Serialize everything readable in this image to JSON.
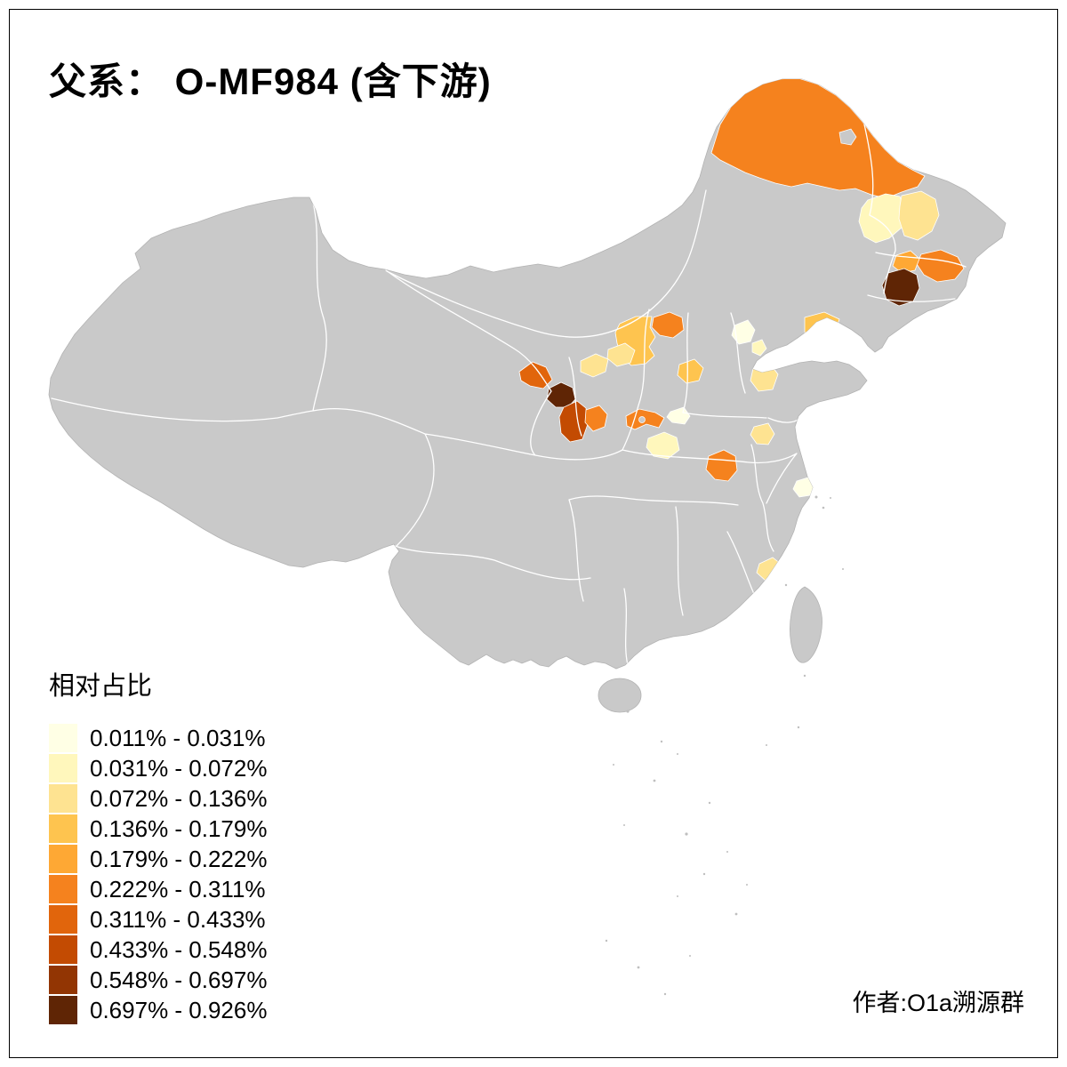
{
  "title": "父系： O-MF984 (含下游)",
  "legend": {
    "title": "相对占比",
    "bins": [
      {
        "label": "0.011% - 0.031%",
        "color": "#FFFFE5"
      },
      {
        "label": "0.031% - 0.072%",
        "color": "#FFF7BC"
      },
      {
        "label": "0.072% - 0.136%",
        "color": "#FEE391"
      },
      {
        "label": "0.136% - 0.179%",
        "color": "#FEC44F"
      },
      {
        "label": "0.179% - 0.222%",
        "color": "#FEA834"
      },
      {
        "label": "0.222% - 0.311%",
        "color": "#F5821E"
      },
      {
        "label": "0.311% - 0.433%",
        "color": "#E1650C"
      },
      {
        "label": "0.433% - 0.548%",
        "color": "#C34B02"
      },
      {
        "label": "0.548% - 0.697%",
        "color": "#923503"
      },
      {
        "label": "0.697% - 0.926%",
        "color": "#5F2505"
      }
    ]
  },
  "credit": "作者:O1a溯源群",
  "map": {
    "base_color": "#C9C9C9",
    "boundary_color": "#FFFFFF",
    "coast_color": "#B3B3B3",
    "sea_color": "#FFFFFF",
    "regions": [
      {
        "name": "northeast-inner-mongolia-hulunbuir",
        "bin": 5
      },
      {
        "name": "heilongjiang-central-west",
        "bin": 1
      },
      {
        "name": "heilongjiang-central-east",
        "bin": 2
      },
      {
        "name": "jilin-east",
        "bin": 5
      },
      {
        "name": "jilin-central",
        "bin": 4
      },
      {
        "name": "jilin-changchun-dark",
        "bin": 9
      },
      {
        "name": "shanxi-north-band",
        "bin": 3
      },
      {
        "name": "shanxi-northeast-orange",
        "bin": 5
      },
      {
        "name": "hebei-south",
        "bin": 3
      },
      {
        "name": "beijing-area",
        "bin": 0
      },
      {
        "name": "tianjin-area",
        "bin": 1
      },
      {
        "name": "shandong-peninsula",
        "bin": 3
      },
      {
        "name": "shandong-west",
        "bin": 2
      },
      {
        "name": "henan-east",
        "bin": 2
      },
      {
        "name": "gansu-streak",
        "bin": 6
      },
      {
        "name": "gansu-southeast-dark",
        "bin": 9
      },
      {
        "name": "shaanxi-baoji-rust",
        "bin": 7
      },
      {
        "name": "shaanxi-xian-orange",
        "bin": 5
      },
      {
        "name": "ningxia-south",
        "bin": 2
      },
      {
        "name": "shaanxi-north",
        "bin": 2
      },
      {
        "name": "henan-west-orange",
        "bin": 5
      },
      {
        "name": "henan-south-pale",
        "bin": 1
      },
      {
        "name": "hubei-north-orange",
        "bin": 5
      },
      {
        "name": "shaanxi-central-pale",
        "bin": 0
      },
      {
        "name": "shanghai-area",
        "bin": 0
      },
      {
        "name": "fujian-coast",
        "bin": 2
      }
    ]
  }
}
